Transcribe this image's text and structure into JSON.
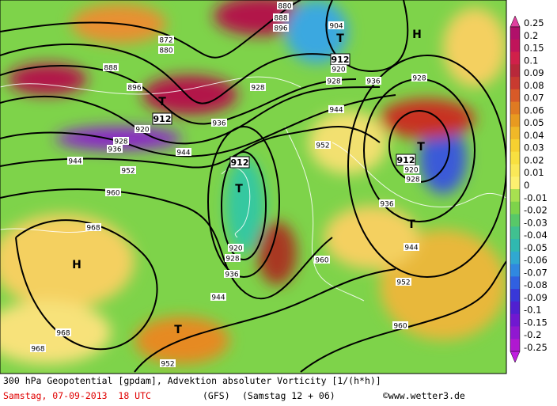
{
  "map": {
    "labels": [
      "H",
      "H",
      "T",
      "T",
      "T",
      "T",
      "T",
      "T",
      "912",
      "912",
      "912",
      "912",
      "872",
      "880",
      "888",
      "896",
      "920",
      "928",
      "936",
      "944",
      "952",
      "960",
      "968",
      "968",
      "968",
      "952",
      "944",
      "936",
      "928",
      "920",
      "928",
      "936",
      "944",
      "904",
      "920",
      "928",
      "936",
      "944",
      "952",
      "928",
      "920",
      "928",
      "936",
      "944",
      "952",
      "960",
      "960",
      "880",
      "888",
      "896"
    ]
  },
  "colorbar": {
    "labels": [
      "0.25",
      "0.2",
      "0.15",
      "0.1",
      "0.09",
      "0.08",
      "0.07",
      "0.06",
      "0.05",
      "0.04",
      "0.03",
      "0.02",
      "0.01",
      "0",
      "-0.01",
      "-0.02",
      "-0.03",
      "-0.04",
      "-0.05",
      "-0.06",
      "-0.07",
      "-0.08",
      "-0.09",
      "-0.1",
      "-0.15",
      "-0.2",
      "-0.25"
    ]
  },
  "footer": {
    "title": "300 hPa Geopotential [gpdam], Advektion absoluter Vorticity [1/(h*h)]",
    "date": "Samstag, 07-09-2013  18 UTC",
    "model": "(GFS)",
    "run": "(Samstag 12 + 06)",
    "credit": "©www.wetter3.de"
  }
}
